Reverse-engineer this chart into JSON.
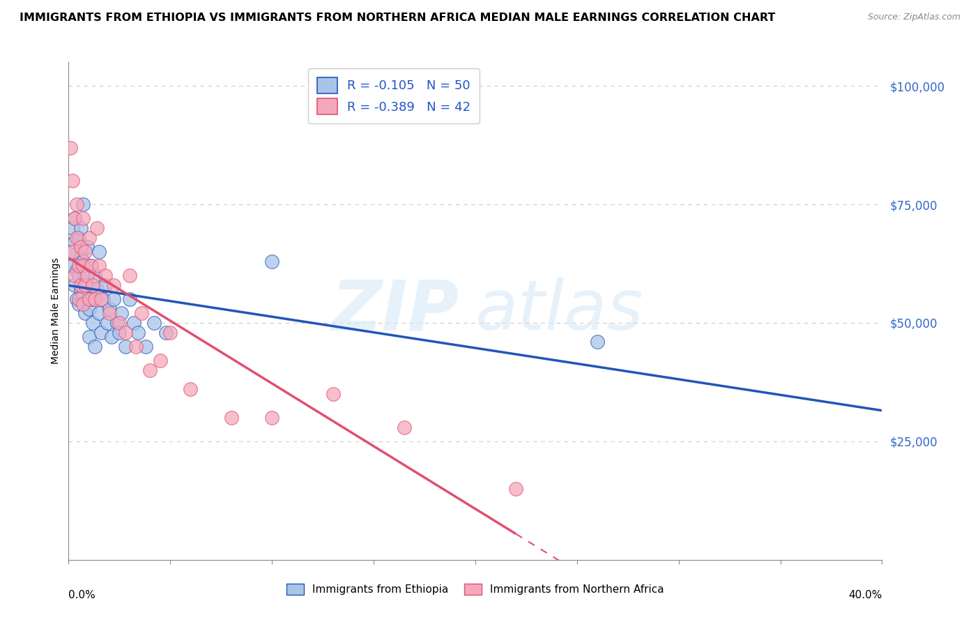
{
  "title": "IMMIGRANTS FROM ETHIOPIA VS IMMIGRANTS FROM NORTHERN AFRICA MEDIAN MALE EARNINGS CORRELATION CHART",
  "source": "Source: ZipAtlas.com",
  "ylabel": "Median Male Earnings",
  "r_ethiopia": -0.105,
  "n_ethiopia": 50,
  "r_north_africa": -0.389,
  "n_north_africa": 42,
  "color_ethiopia": "#aac4e8",
  "color_north_africa": "#f5a8bc",
  "line_color_ethiopia": "#2255bb",
  "line_color_north_africa": "#e05070",
  "xlim": [
    0.0,
    0.4
  ],
  "ylim": [
    0.0,
    105000
  ],
  "ytick_positions": [
    25000,
    50000,
    75000,
    100000
  ],
  "ytick_labels": [
    "$25,000",
    "$50,000",
    "$75,000",
    "$100,000"
  ],
  "ethiopia_x": [
    0.001,
    0.002,
    0.002,
    0.003,
    0.003,
    0.003,
    0.004,
    0.004,
    0.005,
    0.005,
    0.005,
    0.006,
    0.006,
    0.006,
    0.007,
    0.007,
    0.007,
    0.008,
    0.008,
    0.009,
    0.009,
    0.01,
    0.01,
    0.011,
    0.011,
    0.012,
    0.013,
    0.013,
    0.014,
    0.015,
    0.015,
    0.016,
    0.017,
    0.018,
    0.019,
    0.02,
    0.021,
    0.022,
    0.024,
    0.025,
    0.026,
    0.028,
    0.03,
    0.032,
    0.034,
    0.038,
    0.042,
    0.048,
    0.1,
    0.26
  ],
  "ethiopia_y": [
    65000,
    70000,
    62000,
    67000,
    58000,
    72000,
    61000,
    55000,
    68000,
    60000,
    54000,
    64000,
    57000,
    70000,
    63000,
    56000,
    75000,
    60000,
    52000,
    58000,
    66000,
    53000,
    47000,
    62000,
    55000,
    50000,
    60000,
    45000,
    57000,
    52000,
    65000,
    48000,
    55000,
    58000,
    50000,
    53000,
    47000,
    55000,
    50000,
    48000,
    52000,
    45000,
    55000,
    50000,
    48000,
    45000,
    50000,
    48000,
    63000,
    46000
  ],
  "north_africa_x": [
    0.001,
    0.002,
    0.002,
    0.003,
    0.003,
    0.004,
    0.004,
    0.005,
    0.005,
    0.006,
    0.006,
    0.007,
    0.007,
    0.007,
    0.008,
    0.008,
    0.009,
    0.01,
    0.01,
    0.011,
    0.012,
    0.013,
    0.014,
    0.015,
    0.016,
    0.018,
    0.02,
    0.022,
    0.025,
    0.028,
    0.03,
    0.033,
    0.036,
    0.04,
    0.045,
    0.05,
    0.06,
    0.08,
    0.1,
    0.13,
    0.165,
    0.22
  ],
  "north_africa_y": [
    87000,
    80000,
    65000,
    72000,
    60000,
    68000,
    75000,
    62000,
    55000,
    66000,
    58000,
    72000,
    62000,
    54000,
    65000,
    58000,
    60000,
    55000,
    68000,
    62000,
    58000,
    55000,
    70000,
    62000,
    55000,
    60000,
    52000,
    58000,
    50000,
    48000,
    60000,
    45000,
    52000,
    40000,
    42000,
    48000,
    36000,
    30000,
    30000,
    35000,
    28000,
    15000
  ],
  "watermark_zip": "ZIP",
  "watermark_atlas": "atlas",
  "legend_ethiopia": "Immigrants from Ethiopia",
  "legend_north_africa": "Immigrants from Northern Africa"
}
